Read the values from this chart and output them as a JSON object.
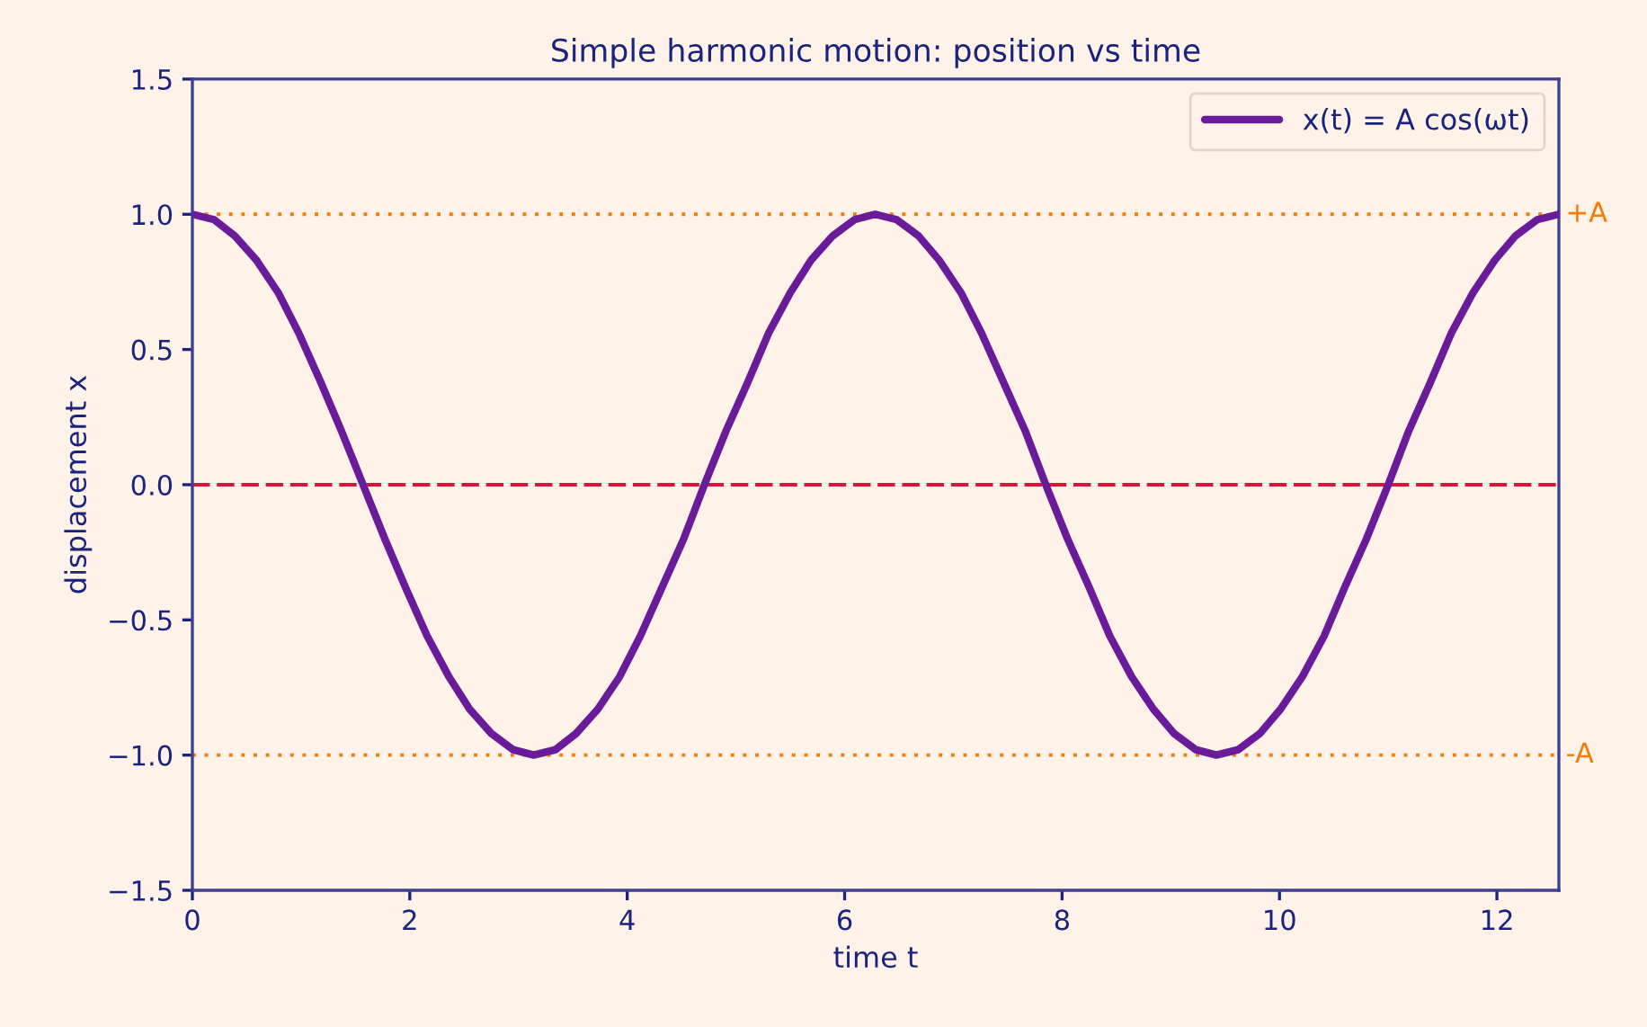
{
  "chart_data": {
    "type": "line",
    "title": "Simple harmonic motion: position vs time",
    "xlabel": "time t",
    "ylabel": "displacement x",
    "x": [
      0,
      0.2,
      0.39,
      0.59,
      0.79,
      0.98,
      1.18,
      1.37,
      1.57,
      1.77,
      1.96,
      2.16,
      2.36,
      2.55,
      2.75,
      2.95,
      3.14,
      3.34,
      3.53,
      3.73,
      3.93,
      4.12,
      4.32,
      4.52,
      4.71,
      4.91,
      5.11,
      5.3,
      5.5,
      5.69,
      5.89,
      6.09,
      6.28,
      6.48,
      6.68,
      6.87,
      7.07,
      7.26,
      7.46,
      7.66,
      7.85,
      8.05,
      8.25,
      8.44,
      8.64,
      8.84,
      9.03,
      9.23,
      9.42,
      9.62,
      9.82,
      10.01,
      10.21,
      10.41,
      10.6,
      10.8,
      11.0,
      11.19,
      11.39,
      11.58,
      11.78,
      11.98,
      12.17,
      12.37,
      12.57
    ],
    "series": [
      {
        "name": "x(t) = A cos(ωt)",
        "color": "#6a1b9a",
        "values": [
          1,
          0.98,
          0.92,
          0.83,
          0.71,
          0.56,
          0.38,
          0.2,
          0,
          -0.2,
          -0.38,
          -0.56,
          -0.71,
          -0.83,
          -0.92,
          -0.98,
          -1,
          -0.98,
          -0.92,
          -0.83,
          -0.71,
          -0.56,
          -0.38,
          -0.2,
          0,
          0.2,
          0.38,
          0.56,
          0.71,
          0.83,
          0.92,
          0.98,
          1,
          0.98,
          0.92,
          0.83,
          0.71,
          0.56,
          0.38,
          0.2,
          0,
          -0.2,
          -0.38,
          -0.56,
          -0.71,
          -0.83,
          -0.92,
          -0.98,
          -1,
          -0.98,
          -0.92,
          -0.83,
          -0.71,
          -0.56,
          -0.38,
          -0.2,
          0,
          0.2,
          0.38,
          0.56,
          0.71,
          0.83,
          0.92,
          0.98,
          1
        ]
      }
    ],
    "xlim": [
      0,
      12.57
    ],
    "xticks": [
      0,
      2,
      4,
      6,
      8,
      10,
      12
    ],
    "ylim": [
      -1.5,
      1.5
    ],
    "yticks": [
      {
        "value": -1.5,
        "label": "−1.5"
      },
      {
        "value": -1.0,
        "label": "−1.0"
      },
      {
        "value": -0.5,
        "label": "−0.5"
      },
      {
        "value": 0,
        "label": "0.0"
      },
      {
        "value": 0.5,
        "label": "0.5"
      },
      {
        "value": 1.0,
        "label": "1.0"
      },
      {
        "value": 1.5,
        "label": "1.5"
      }
    ],
    "ref_lines": [
      {
        "axis": "y",
        "value": 1,
        "label": "+A",
        "color": "#f57c00",
        "line_style": "dotted"
      },
      {
        "axis": "y",
        "value": -1,
        "label": "-A",
        "color": "#f57c00",
        "line_style": "dotted"
      },
      {
        "axis": "y",
        "value": 0,
        "color": "#dc143c",
        "line_style": "dashed"
      }
    ],
    "grid": false,
    "legend": "top right",
    "line_style": "solid"
  }
}
